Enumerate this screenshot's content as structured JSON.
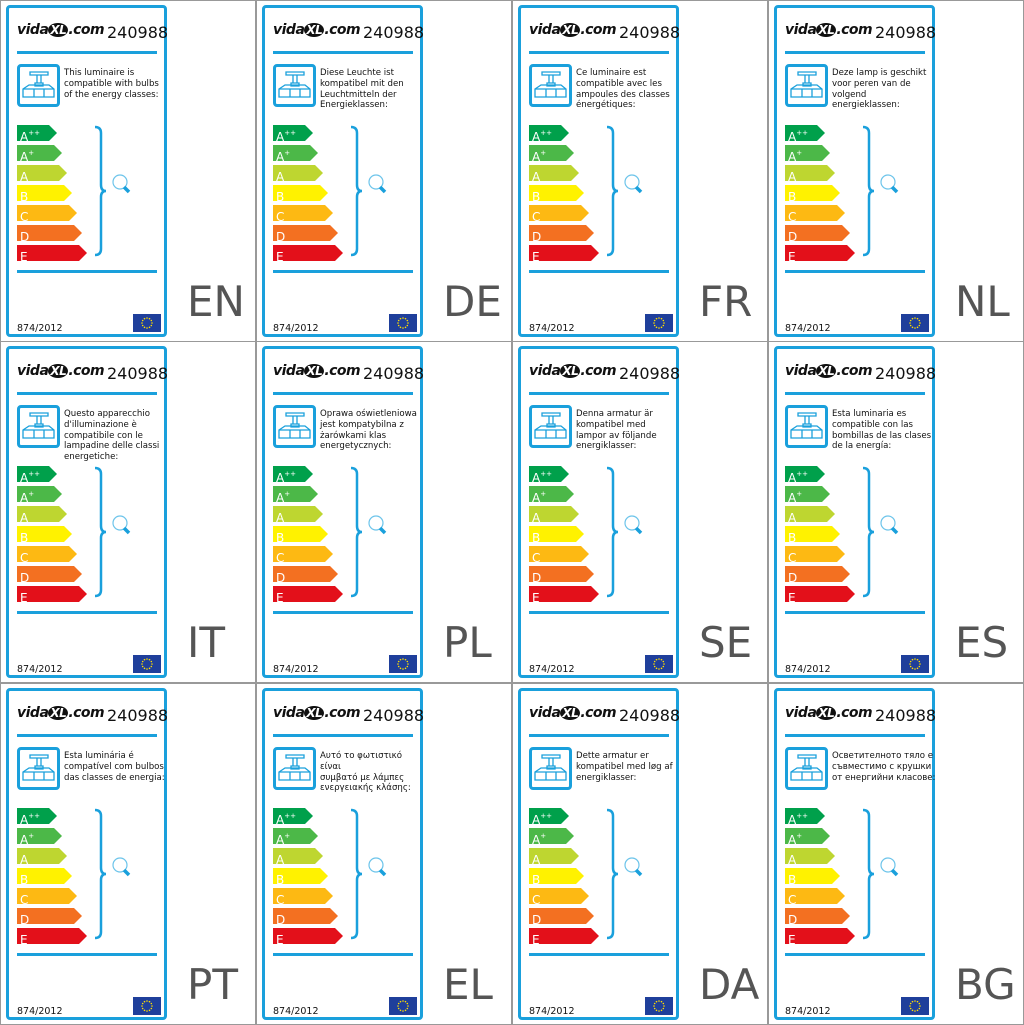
{
  "brand": "vidaXL.com",
  "brand_parts": {
    "pre": "vida",
    "mark": "XL",
    "post": ".com"
  },
  "product_code": "240988",
  "regulation": "874/2012",
  "icons": {
    "luminaire": "luminaire-icon",
    "bulb": "bulb-icon",
    "flag": "eu-flag-icon"
  },
  "colors": {
    "border": "#1aa0dc",
    "A++": "#00a04b",
    "A+": "#4cb848",
    "A": "#bed630",
    "B": "#fff200",
    "C": "#fdb913",
    "D": "#f37021",
    "E": "#e3101a"
  },
  "classes": [
    {
      "base": "A",
      "sup": "++",
      "key": "A++"
    },
    {
      "base": "A",
      "sup": "+",
      "key": "A+"
    },
    {
      "base": "A",
      "sup": "",
      "key": "A"
    },
    {
      "base": "B",
      "sup": "",
      "key": "B"
    },
    {
      "base": "C",
      "sup": "",
      "key": "C"
    },
    {
      "base": "D",
      "sup": "",
      "key": "D"
    },
    {
      "base": "E",
      "sup": "",
      "key": "E"
    }
  ],
  "labels": [
    {
      "lang": "EN",
      "text": "This luminaire is\ncompatible with bulbs\nof the energy classes:"
    },
    {
      "lang": "DE",
      "text": "Diese Leuchte ist\nkompatibel mit den\nLeuchtmitteln der\nEnergieklassen:"
    },
    {
      "lang": "FR",
      "text": "Ce luminaire est\ncompatible avec les\nampoules des classes\nénergétiques:"
    },
    {
      "lang": "NL",
      "text": "Deze lamp is geschikt\nvoor peren van de\nvolgend energieklassen:"
    },
    {
      "lang": "IT",
      "text": "Questo apparecchio\nd'illuminazione è\ncompatibile con le\nlampadine delle classi\nenergetiche:"
    },
    {
      "lang": "PL",
      "text": "Oprawa oświetleniowa\njest kompatybilna z\nżarówkami klas\nenergetycznych:"
    },
    {
      "lang": "SE",
      "text": "Denna armatur är\nkompatibel med\nlampor av följande\nenergiklasser:"
    },
    {
      "lang": "ES",
      "text": "Esta luminaria es\ncompatible con las\nbombillas de las clases\nde la energía:"
    },
    {
      "lang": "PT",
      "text": "Esta luminária é\ncompatível com bulbos\ndas classes de energia:"
    },
    {
      "lang": "EL",
      "text": "Αυτό το φωτιστικό είναι\nσυμβατό με λάμπες\nενεργειακής κλάσης:"
    },
    {
      "lang": "DA",
      "text": "Dette armatur er\nkompatibel med løg af\nenergiklasser:"
    },
    {
      "lang": "BG",
      "text": "Осветителното тяло е\nсъвместимо с крушки\nот енергийни класове:"
    }
  ]
}
